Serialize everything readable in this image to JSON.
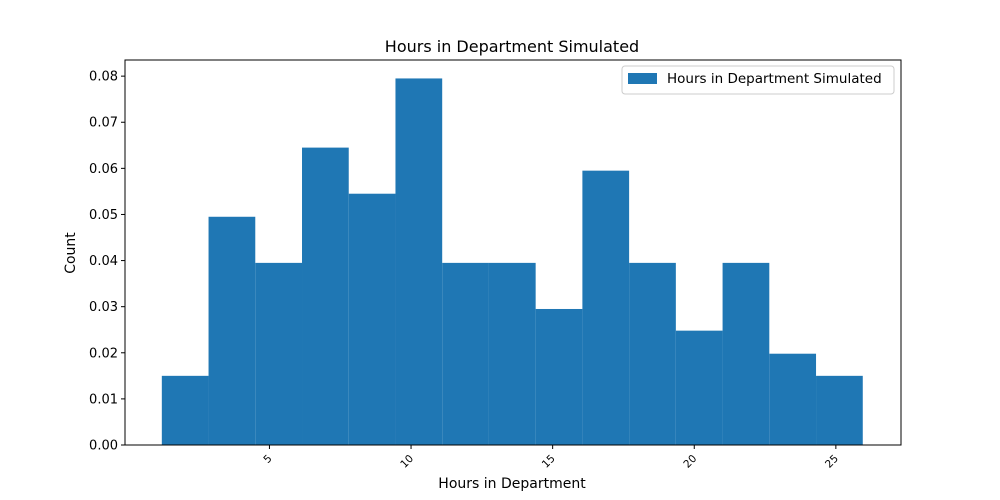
{
  "chart_data": {
    "type": "bar",
    "title": "Hours in Department Simulated",
    "xlabel": "Hours in Department",
    "ylabel": "Count",
    "legend": {
      "label": "Hours in Department Simulated",
      "placement": "top-right"
    },
    "bar_color": "#1f77b4",
    "bin_edges": [
      1.2,
      2.85,
      4.5,
      6.15,
      7.8,
      9.45,
      11.1,
      12.75,
      14.4,
      16.05,
      17.7,
      19.35,
      21.0,
      22.65,
      24.3,
      25.95
    ],
    "values": [
      0.015,
      0.0495,
      0.0395,
      0.0645,
      0.0545,
      0.0795,
      0.0395,
      0.0395,
      0.0295,
      0.0595,
      0.0395,
      0.0248,
      0.0395,
      0.0198,
      0.015
    ],
    "xlim": [
      -0.1,
      27.3
    ],
    "ylim": [
      0,
      0.0835
    ],
    "x_ticks": [
      5,
      10,
      15,
      20,
      25
    ],
    "x_tick_labels": [
      "5",
      "10",
      "15",
      "20",
      "25"
    ],
    "y_ticks": [
      0,
      0.01,
      0.02,
      0.03,
      0.04,
      0.05,
      0.06,
      0.07,
      0.08
    ],
    "y_tick_labels": [
      "0.00",
      "0.01",
      "0.02",
      "0.03",
      "0.04",
      "0.05",
      "0.06",
      "0.07",
      "0.08"
    ],
    "grid": false
  }
}
